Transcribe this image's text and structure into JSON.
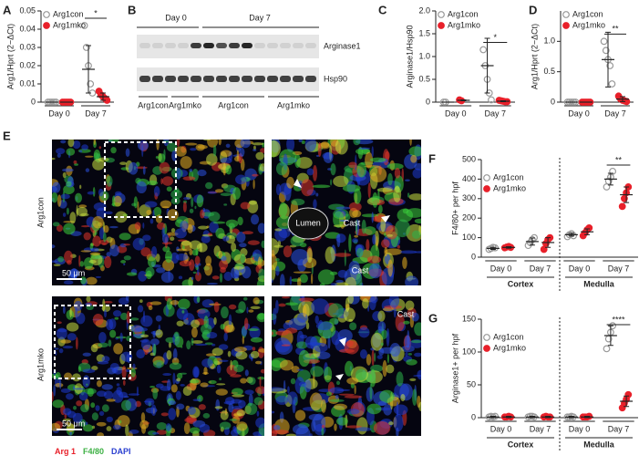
{
  "chart_data": [
    {
      "type": "dot",
      "panel": "A",
      "ylabel": "Arg1/Hprt (2−ΔCt)",
      "categories": [
        "Day 0",
        "Day 7"
      ],
      "ylim": [
        0,
        0.05
      ],
      "yticks": [
        0,
        0.01,
        0.02,
        0.03,
        0.04,
        0.05
      ],
      "significance": [
        null,
        "*"
      ],
      "legend": "upper-left",
      "series": [
        {
          "name": "Arg1con",
          "color": "#999999",
          "marker": "open",
          "values": [
            [
              0,
              0,
              0,
              0,
              0
            ],
            [
              0.042,
              0.03,
              0.02,
              0.01,
              0.005
            ]
          ],
          "mean": [
            0,
            0.018
          ],
          "sd": [
            0,
            0.013
          ]
        },
        {
          "name": "Arg1mko",
          "color": "#e8202a",
          "marker": "filled",
          "values": [
            [
              0,
              0,
              0,
              0,
              0
            ],
            [
              0.006,
              0.004,
              0.003,
              0.002,
              0.001
            ]
          ],
          "mean": [
            0,
            0.003
          ],
          "sd": [
            0,
            0.002
          ]
        }
      ]
    },
    {
      "type": "dot",
      "panel": "C",
      "ylabel": "Arginase1/Hsp90",
      "categories": [
        "Day 0",
        "Day 7"
      ],
      "ylim": [
        0,
        2
      ],
      "yticks": [
        0,
        0.5,
        {
          "value": 1,
          "label": "1.0"
        },
        1.5,
        {
          "value": 2,
          "label": "2.0"
        }
      ],
      "significance": [
        null,
        "*"
      ],
      "legend": "upper-left",
      "series": [
        {
          "name": "Arg1con",
          "color": "#999999",
          "marker": "open",
          "values": [
            [
              0,
              0
            ],
            [
              1.15,
              0.8,
              0.5,
              0.2,
              0.05
            ]
          ],
          "mean": [
            0,
            0.8
          ],
          "sd": [
            0,
            0.6
          ]
        },
        {
          "name": "Arg1mko",
          "color": "#e8202a",
          "marker": "filled",
          "values": [
            [
              0.05,
              0.03
            ],
            [
              0.04,
              0.03,
              0.02,
              0.01,
              0.01
            ]
          ],
          "mean": [
            0.04,
            0.02
          ],
          "sd": [
            0.01,
            0.01
          ]
        }
      ]
    },
    {
      "type": "dot",
      "panel": "D",
      "ylabel": "Arg1/Hprt (2−ΔCt)",
      "categories": [
        "Day 0",
        "Day 7"
      ],
      "ylim": [
        0,
        1.5
      ],
      "yticks": [
        0,
        0.5,
        {
          "value": 1,
          "label": "1.0"
        }
      ],
      "significance": [
        null,
        "**"
      ],
      "legend": "upper-left",
      "series": [
        {
          "name": "Arg1con",
          "color": "#999999",
          "marker": "open",
          "values": [
            [
              0,
              0,
              0,
              0,
              0
            ],
            [
              1.0,
              0.85,
              0.7,
              0.6,
              0.3
            ]
          ],
          "mean": [
            0,
            0.7
          ],
          "sd": [
            0,
            0.45
          ]
        },
        {
          "name": "Arg1mko",
          "color": "#e8202a",
          "marker": "filled",
          "values": [
            [
              0,
              0,
              0,
              0,
              0
            ],
            [
              0.1,
              0.05,
              0.03,
              0.02,
              0.01
            ]
          ],
          "mean": [
            0,
            0.05
          ],
          "sd": [
            0,
            0.04
          ]
        }
      ]
    },
    {
      "type": "dot",
      "panel": "F",
      "ylabel": "F4/80+ per hpf",
      "categories": [
        "Day 0",
        "Day 7",
        "Day 0",
        "Day 7"
      ],
      "groups": [
        "Cortex",
        "Medulla"
      ],
      "ylim": [
        0,
        500
      ],
      "yticks": [
        0,
        100,
        200,
        300,
        400,
        500
      ],
      "significance": [
        null,
        null,
        null,
        "**"
      ],
      "legend": "upper-left",
      "series": [
        {
          "name": "Arg1con",
          "color": "#999999",
          "marker": "open",
          "values": [
            [
              40,
              45,
              50,
              48
            ],
            [
              60,
              75,
              90,
              100
            ],
            [
              105,
              115,
              120,
              110
            ],
            [
              360,
              390,
              410,
              440
            ]
          ],
          "mean": [
            45,
            80,
            115,
            400
          ],
          "sd": [
            5,
            18,
            7,
            30
          ]
        },
        {
          "name": "Arg1mko",
          "color": "#e8202a",
          "marker": "filled",
          "values": [
            [
              48,
              52,
              55,
              50
            ],
            [
              40,
              70,
              90,
              100
            ],
            [
              110,
              125,
              140,
              150
            ],
            [
              260,
              300,
              330,
              360
            ]
          ],
          "mean": [
            50,
            75,
            130,
            320
          ],
          "sd": [
            4,
            25,
            15,
            40
          ]
        }
      ]
    },
    {
      "type": "dot",
      "panel": "G",
      "ylabel": "Arginase1+ per hpf",
      "categories": [
        "Day 0",
        "Day 7",
        "Day 0",
        "Day 7"
      ],
      "groups": [
        "Cortex",
        "Medulla"
      ],
      "ylim": [
        0,
        150
      ],
      "yticks": [
        0,
        50,
        100,
        150
      ],
      "significance": [
        null,
        null,
        null,
        "****"
      ],
      "legend": "upper-left",
      "series": [
        {
          "name": "Arg1con",
          "color": "#999999",
          "marker": "open",
          "values": [
            [
              1,
              2,
              1,
              2
            ],
            [
              1,
              2,
              2,
              1
            ],
            [
              1,
              1,
              2,
              1
            ],
            [
              105,
              120,
              130,
              140
            ]
          ],
          "mean": [
            1,
            1,
            1,
            125
          ],
          "sd": [
            1,
            1,
            1,
            15
          ]
        },
        {
          "name": "Arg1mko",
          "color": "#e8202a",
          "marker": "filled",
          "values": [
            [
              1,
              1,
              2,
              1
            ],
            [
              1,
              2,
              1,
              1
            ],
            [
              1,
              1,
              1,
              2
            ],
            [
              15,
              22,
              28,
              35
            ]
          ],
          "mean": [
            1,
            1,
            1,
            25
          ],
          "sd": [
            1,
            1,
            1,
            8
          ]
        }
      ]
    }
  ],
  "blot": {
    "panel": "B",
    "days": [
      "Day 0",
      "Day 7"
    ],
    "rows": [
      "Arginase1",
      "Hsp90"
    ],
    "lanes": [
      "Arg1con",
      "Arg1mko",
      "Arg1con",
      "Arg1mko"
    ]
  },
  "micrograph": {
    "panel": "E",
    "rows": [
      "Arg1con",
      "Arg1mko"
    ],
    "scale": "50 μm",
    "annotations": [
      "Lumen",
      "Cast",
      "Cast",
      "Cast"
    ],
    "legend": [
      {
        "text": "Arg 1",
        "color": "#e8202a"
      },
      {
        "text": "F4/80",
        "color": "#3cb043"
      },
      {
        "text": "DAPI",
        "color": "#2a3fd0"
      }
    ]
  }
}
